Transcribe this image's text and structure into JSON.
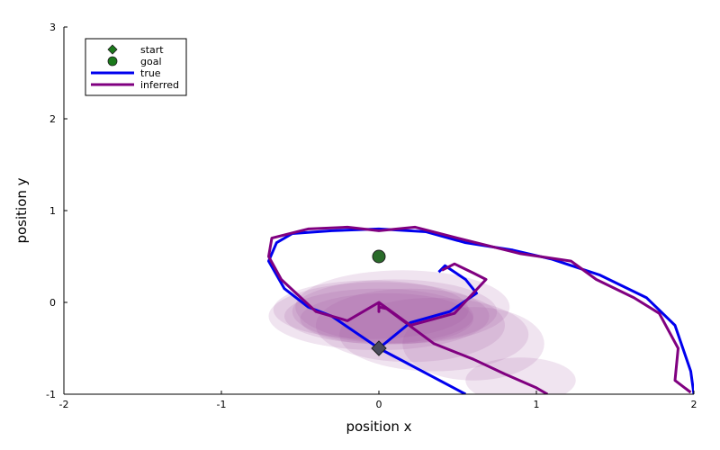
{
  "chart_data": {
    "type": "line",
    "xlabel": "position x",
    "ylabel": "position y",
    "xlim": [
      -2,
      2
    ],
    "ylim": [
      -1,
      3
    ],
    "xticks": [
      "-2",
      "-1",
      "0",
      "1",
      "2"
    ],
    "yticks": [
      "-1",
      "0",
      "1",
      "2",
      "3"
    ],
    "grid": false,
    "legend_position": "top-left",
    "legend": [
      {
        "name": "start",
        "marker": "diamond",
        "color": "#1b7a1b"
      },
      {
        "name": "goal",
        "marker": "circle",
        "color": "#1b7a1b"
      },
      {
        "name": "true",
        "marker": "line",
        "color": "#0000ee"
      },
      {
        "name": "inferred",
        "marker": "line",
        "color": "#800080"
      }
    ],
    "start": {
      "x": 0,
      "y": -0.5
    },
    "goal": {
      "x": 0,
      "y": 0.5
    },
    "ellipse_color": "#a457a4",
    "ellipses": [
      {
        "cx": 0.05,
        "cy": -0.18,
        "rx": 0.55,
        "ry": 0.28
      },
      {
        "cx": 0.0,
        "cy": -0.15,
        "rx": 0.6,
        "ry": 0.3
      },
      {
        "cx": 0.1,
        "cy": -0.1,
        "rx": 0.65,
        "ry": 0.35
      },
      {
        "cx": 0.0,
        "cy": -0.15,
        "rx": 0.7,
        "ry": 0.37
      },
      {
        "cx": -0.05,
        "cy": -0.08,
        "rx": 0.62,
        "ry": 0.32
      },
      {
        "cx": 0.2,
        "cy": -0.25,
        "rx": 0.6,
        "ry": 0.4
      },
      {
        "cx": 0.15,
        "cy": -0.05,
        "rx": 0.68,
        "ry": 0.4
      },
      {
        "cx": 0.35,
        "cy": -0.35,
        "rx": 0.6,
        "ry": 0.4
      },
      {
        "cx": 0.6,
        "cy": -0.45,
        "rx": 0.45,
        "ry": 0.4
      },
      {
        "cx": 0.9,
        "cy": -0.85,
        "rx": 0.35,
        "ry": 0.25
      }
    ],
    "series": [
      {
        "name": "true",
        "color": "#0000ee",
        "points": [
          [
            0.55,
            -1.0
          ],
          [
            0.0,
            -0.5
          ],
          [
            0.0,
            -0.5
          ],
          [
            -0.3,
            -0.15
          ],
          [
            -0.45,
            -0.05
          ],
          [
            -0.6,
            0.15
          ],
          [
            -0.7,
            0.45
          ],
          [
            -0.65,
            0.65
          ],
          [
            -0.55,
            0.75
          ],
          [
            -0.3,
            0.78
          ],
          [
            0.0,
            0.8
          ],
          [
            0.3,
            0.77
          ],
          [
            0.55,
            0.65
          ],
          [
            0.85,
            0.57
          ],
          [
            1.1,
            0.47
          ],
          [
            1.4,
            0.3
          ],
          [
            1.7,
            0.05
          ],
          [
            1.88,
            -0.25
          ],
          [
            1.98,
            -0.75
          ],
          [
            2.0,
            -1.0
          ]
        ]
      },
      {
        "name": "inferred",
        "color": "#800080",
        "points": [
          [
            1.07,
            -1.0
          ],
          [
            1.0,
            -0.93
          ],
          [
            0.8,
            -0.78
          ],
          [
            0.6,
            -0.62
          ],
          [
            0.35,
            -0.45
          ],
          [
            0.05,
            -0.07
          ],
          [
            0.0,
            -0.05
          ],
          [
            0.0,
            -0.1
          ],
          [
            0.0,
            0.0
          ],
          [
            -0.2,
            -0.2
          ],
          [
            -0.4,
            -0.1
          ],
          [
            -0.62,
            0.25
          ],
          [
            -0.7,
            0.5
          ],
          [
            -0.68,
            0.7
          ],
          [
            -0.45,
            0.8
          ],
          [
            -0.2,
            0.82
          ],
          [
            0.0,
            0.78
          ],
          [
            0.23,
            0.82
          ],
          [
            0.5,
            0.7
          ],
          [
            0.9,
            0.53
          ],
          [
            1.22,
            0.45
          ],
          [
            1.38,
            0.25
          ],
          [
            1.62,
            0.05
          ],
          [
            1.78,
            -0.12
          ],
          [
            1.9,
            -0.5
          ],
          [
            1.88,
            -0.85
          ],
          [
            1.98,
            -0.98
          ]
        ]
      }
    ],
    "inner_loop": {
      "true": [
        [
          0.0,
          -0.5
        ],
        [
          0.2,
          -0.22
        ],
        [
          0.45,
          -0.1
        ],
        [
          0.62,
          0.1
        ],
        [
          0.55,
          0.25
        ],
        [
          0.42,
          0.4
        ],
        [
          0.38,
          0.33
        ]
      ],
      "inferred": [
        [
          0.0,
          0.0
        ],
        [
          0.2,
          -0.25
        ],
        [
          0.48,
          -0.12
        ],
        [
          0.68,
          0.25
        ],
        [
          0.6,
          0.32
        ],
        [
          0.48,
          0.42
        ],
        [
          0.4,
          0.35
        ]
      ]
    }
  }
}
